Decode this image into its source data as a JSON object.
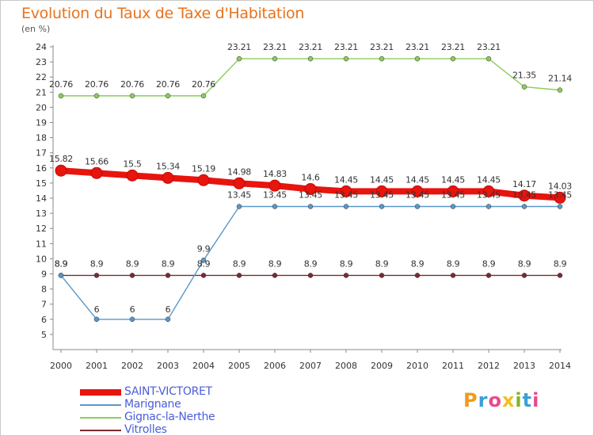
{
  "title": "Evolution du Taux de Taxe d'Habitation",
  "unit": "(en %)",
  "logo": {
    "letters": [
      "P",
      "r",
      "o",
      "x",
      "i",
      "t",
      "i"
    ],
    "colors": [
      "#f29a1a",
      "#3aa0d8",
      "#e84a8a",
      "#f0c020",
      "#7ab829",
      "#3aa0d8",
      "#e84a8a"
    ]
  },
  "chart_data": {
    "type": "line",
    "x": [
      2000,
      2001,
      2002,
      2003,
      2004,
      2005,
      2006,
      2007,
      2008,
      2009,
      2010,
      2011,
      2012,
      2013,
      2014
    ],
    "ylim": [
      4,
      24
    ],
    "yticks": [
      5,
      6,
      7,
      8,
      9,
      10,
      11,
      12,
      13,
      14,
      15,
      16,
      17,
      18,
      19,
      20,
      21,
      22,
      23,
      24
    ],
    "grid": false,
    "legend_position": "bottom-left",
    "series": [
      {
        "name": "SAINT-VICTORET",
        "color": "#e8140e",
        "values": [
          15.82,
          15.66,
          15.5,
          15.34,
          15.19,
          14.98,
          14.83,
          14.6,
          14.45,
          14.45,
          14.45,
          14.45,
          14.45,
          14.17,
          14.03
        ]
      },
      {
        "name": "Marignane",
        "color": "#5a97c8",
        "values": [
          8.9,
          6,
          6,
          6,
          9.9,
          13.45,
          13.45,
          13.45,
          13.45,
          13.45,
          13.45,
          13.45,
          13.45,
          13.45,
          13.45
        ]
      },
      {
        "name": "Gignac-la-Nerthe",
        "color": "#8ccc5a",
        "values": [
          20.76,
          20.76,
          20.76,
          20.76,
          20.76,
          23.21,
          23.21,
          23.21,
          23.21,
          23.21,
          23.21,
          23.21,
          23.21,
          21.35,
          21.14
        ]
      },
      {
        "name": "Vitrolles",
        "color": "#7a2a34",
        "values": [
          8.9,
          8.9,
          8.9,
          8.9,
          8.9,
          8.9,
          8.9,
          8.9,
          8.9,
          8.9,
          8.9,
          8.9,
          8.9,
          8.9,
          8.9
        ]
      }
    ]
  }
}
